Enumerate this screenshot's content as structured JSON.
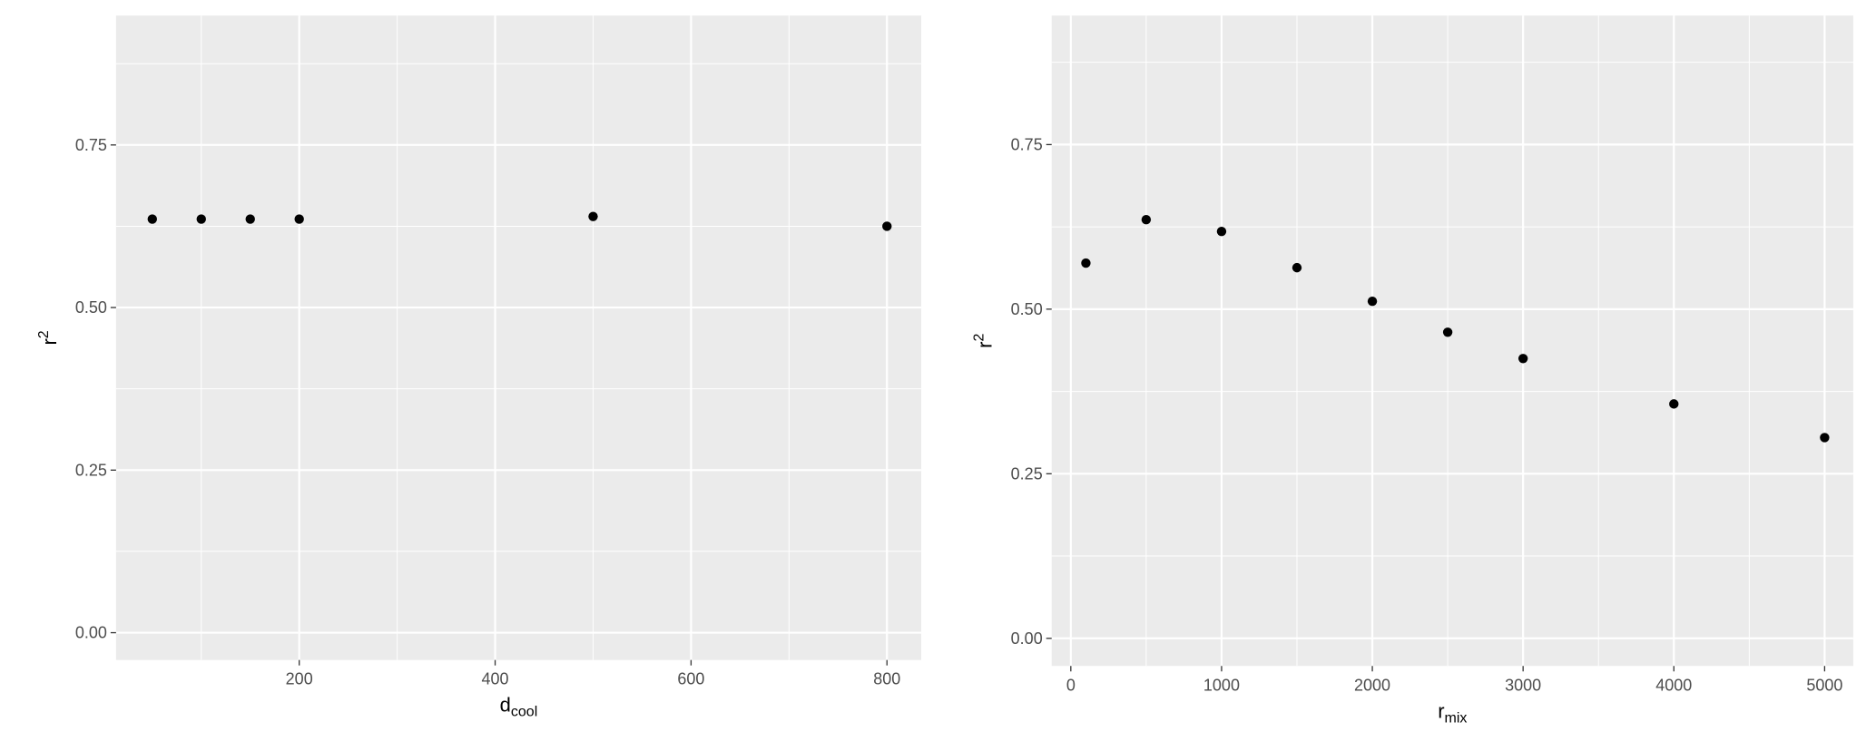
{
  "chart_data": [
    {
      "type": "scatter",
      "x_label": "d",
      "x_label_subscript": "cool",
      "y_label": "r",
      "y_label_superscript": "2",
      "x": [
        50,
        100,
        150,
        200,
        500,
        800
      ],
      "values": [
        0.636,
        0.636,
        0.636,
        0.636,
        0.64,
        0.625
      ],
      "color": "#000000",
      "xlim": [
        13,
        835
      ],
      "ylim": [
        -0.042,
        0.949
      ],
      "xticks": [
        200,
        400,
        600,
        800
      ],
      "yticks": [
        {
          "value": 0,
          "label": "0.00"
        },
        0.25,
        {
          "value": 0.5,
          "label": "0.50"
        },
        0.75
      ],
      "grid": true
    },
    {
      "type": "scatter",
      "x_label": "r",
      "x_label_subscript": "mix",
      "y_label": "r",
      "y_label_superscript": "2",
      "x": [
        100,
        500,
        1000,
        1500,
        2000,
        2500,
        3000,
        4000,
        5000
      ],
      "values": [
        0.57,
        0.636,
        0.618,
        0.563,
        0.512,
        0.465,
        0.425,
        0.356,
        0.305
      ],
      "color": "#000000",
      "xlim": [
        -127,
        5190
      ],
      "ylim": [
        -0.042,
        0.946
      ],
      "xticks": [
        0,
        1000,
        2000,
        3000,
        4000,
        5000
      ],
      "yticks": [
        {
          "value": 0,
          "label": "0.00"
        },
        0.25,
        {
          "value": 0.5,
          "label": "0.50"
        },
        0.75
      ],
      "grid": true
    }
  ]
}
